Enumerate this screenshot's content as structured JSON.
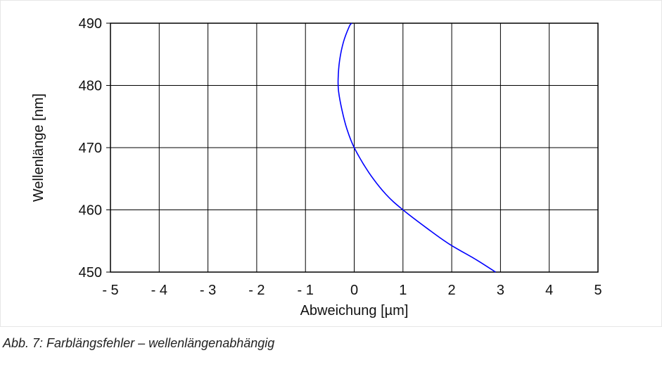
{
  "chart_data": {
    "type": "line",
    "xlabel": "Abweichung [µm]",
    "ylabel": "Wellenlänge [nm]",
    "xlim": [
      -5,
      5
    ],
    "ylim": [
      450,
      490
    ],
    "x_ticks": [
      -5,
      -4,
      -3,
      -2,
      -1,
      0,
      1,
      2,
      3,
      4,
      5
    ],
    "x_tick_labels": [
      "- 5",
      "- 4",
      "- 3",
      "- 2",
      "- 1",
      "0",
      "1",
      "2",
      "3",
      "4",
      "5"
    ],
    "y_ticks": [
      450,
      460,
      470,
      480,
      490
    ],
    "y_tick_labels": [
      "450",
      "460",
      "470",
      "480",
      "490"
    ],
    "grid": true,
    "series": [
      {
        "color": "#0000ff",
        "x": [
          2.9,
          2.5,
          1.95,
          1.5,
          1.0,
          0.65,
          0.3,
          0.0,
          -0.15,
          -0.25,
          -0.32,
          -0.33,
          -0.3,
          -0.22,
          -0.1,
          -0.05
        ],
        "y": [
          450,
          452,
          454.5,
          457,
          460,
          462.5,
          466,
          470,
          473,
          476,
          479,
          481,
          484,
          487,
          489.5,
          490
        ]
      }
    ]
  },
  "caption": "Abb. 7: Farblängsfehler – wellenlängenabhängig"
}
